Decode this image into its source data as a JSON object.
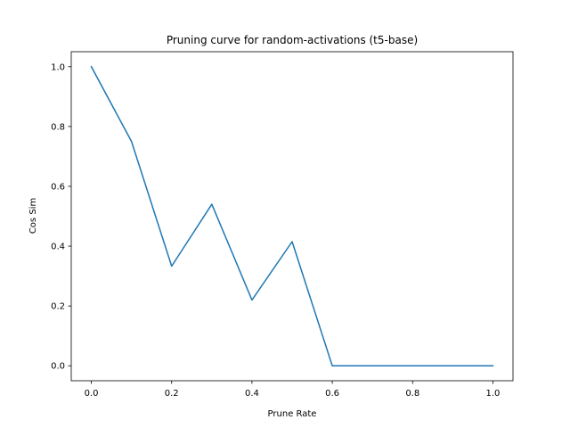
{
  "chart_data": {
    "type": "line",
    "title": "Pruning curve for random-activations (t5-base)",
    "xlabel": "Prune Rate",
    "ylabel": "Cos Sim",
    "xlim": [
      -0.05,
      1.05
    ],
    "ylim": [
      -0.05,
      1.05
    ],
    "grid": false,
    "x_ticks": [
      0.0,
      0.2,
      0.4,
      0.6,
      0.8,
      1.0
    ],
    "x_tick_labels": [
      "0.0",
      "0.2",
      "0.4",
      "0.6",
      "0.8",
      "1.0"
    ],
    "y_ticks": [
      0.0,
      0.2,
      0.4,
      0.6,
      0.8,
      1.0
    ],
    "y_tick_labels": [
      "0.0",
      "0.2",
      "0.4",
      "0.6",
      "0.8",
      "1.0"
    ],
    "series": [
      {
        "color": "#1f77b4",
        "x": [
          0.0,
          0.1,
          0.2,
          0.3,
          0.4,
          0.5,
          0.6,
          0.7,
          0.8,
          0.9,
          1.0
        ],
        "y": [
          1.0,
          0.75,
          0.333,
          0.54,
          0.22,
          0.415,
          0.0,
          0.0,
          0.0,
          0.0,
          0.0
        ]
      }
    ]
  }
}
